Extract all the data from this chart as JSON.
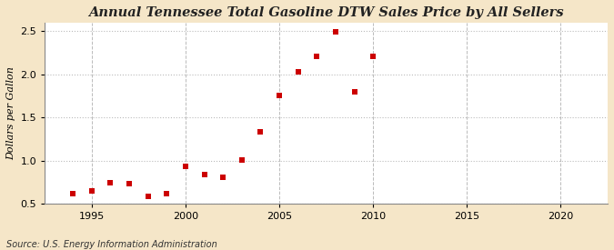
{
  "years": [
    1994,
    1995,
    1996,
    1997,
    1998,
    1999,
    2000,
    2001,
    2002,
    2003,
    2004,
    2005,
    2006,
    2007,
    2008,
    2009,
    2010
  ],
  "values": [
    0.62,
    0.65,
    0.75,
    0.73,
    0.59,
    0.62,
    0.94,
    0.84,
    0.81,
    1.01,
    1.34,
    1.76,
    2.03,
    2.21,
    2.49,
    1.8,
    2.21
  ],
  "title": "Annual Tennessee Total Gasoline DTW Sales Price by All Sellers",
  "ylabel": "Dollars per Gallon",
  "source": "Source: U.S. Energy Information Administration",
  "marker_color": "#cc0000",
  "outer_background": "#f5e6c8",
  "plot_background": "#ffffff",
  "xlim": [
    1992.5,
    2022.5
  ],
  "ylim": [
    0.5,
    2.6
  ],
  "xticks": [
    1995,
    2000,
    2005,
    2010,
    2015,
    2020
  ],
  "yticks": [
    0.5,
    1.0,
    1.5,
    2.0,
    2.5
  ],
  "grid_color": "#bbbbbb",
  "title_fontsize": 10.5,
  "label_fontsize": 8,
  "tick_fontsize": 8,
  "source_fontsize": 7,
  "marker_size": 4
}
